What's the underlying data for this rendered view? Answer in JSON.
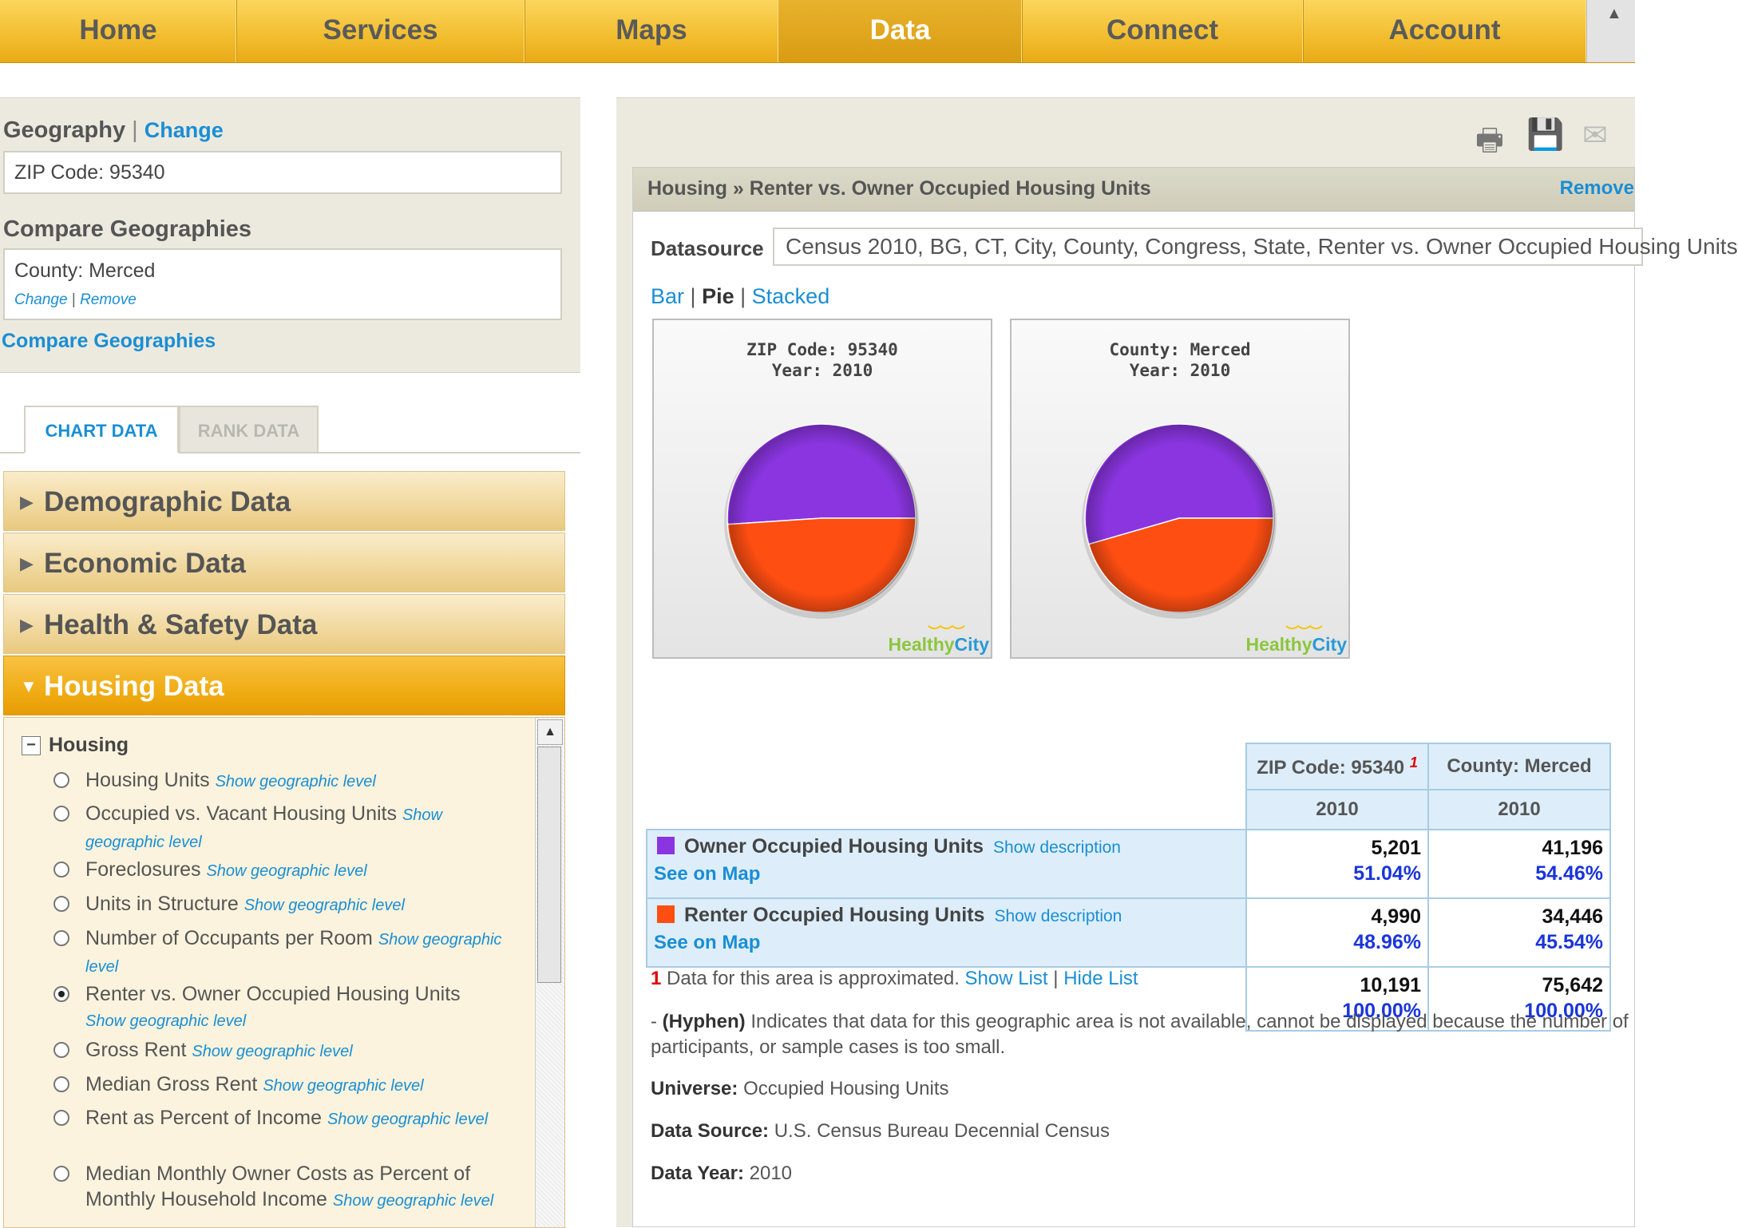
{
  "nav": {
    "items": [
      "Home",
      "Services",
      "Maps",
      "Data",
      "Connect",
      "Account"
    ],
    "active": "Data"
  },
  "geography": {
    "heading": "Geography",
    "separator": "|",
    "change_label": "Change",
    "current": "ZIP Code: 95340",
    "compare_heading": "Compare Geographies",
    "compare_value": "County: Merced",
    "compare_change": "Change",
    "compare_remove": "Remove",
    "compare_link": "Compare Geographies"
  },
  "tabs": {
    "chart": "CHART DATA",
    "rank": "RANK DATA"
  },
  "categories": {
    "demographic": "Demographic Data",
    "economic": "Economic Data",
    "health": "Health & Safety Data",
    "housing": "Housing Data"
  },
  "tree": {
    "root": "Housing",
    "options": [
      {
        "label": "Housing Units",
        "geo": "Show geographic level"
      },
      {
        "label": "Occupied vs. Vacant Housing Units",
        "geo": "Show geographic level"
      },
      {
        "label": "Foreclosures",
        "geo": "Show geographic level"
      },
      {
        "label": "Units in Structure",
        "geo": "Show geographic level"
      },
      {
        "label": "Number of Occupants per Room",
        "geo": "Show geographic level"
      },
      {
        "label": "Renter vs. Owner Occupied Housing Units",
        "geo": "Show geographic level"
      },
      {
        "label": "Gross Rent",
        "geo": "Show geographic level"
      },
      {
        "label": "Median Gross Rent",
        "geo": "Show geographic level"
      },
      {
        "label": "Rent as Percent of Income",
        "geo": "Show geographic level"
      },
      {
        "label": "Median Monthly Owner Costs as Percent of Monthly Household Income",
        "geo": "Show geographic level"
      }
    ],
    "selected_index": 5
  },
  "panel": {
    "breadcrumb": "Housing » Renter vs. Owner Occupied Housing Units",
    "remove_label": "Remove",
    "datasource_label": "Datasource",
    "datasource_value": "Census 2010, BG, CT, City, County, Congress, State, Renter vs. Owner Occupied Housing Units",
    "chart_types": {
      "bar": "Bar",
      "pie": "Pie",
      "stacked": "Stacked",
      "sep": "|"
    }
  },
  "colors": {
    "owner": "#8a35e0",
    "renter": "#ff4e12",
    "nav_gold": "#f2bd2e",
    "link_blue": "#1a8ed4"
  },
  "icons": [
    "printer-icon",
    "save-icon",
    "email-icon"
  ],
  "logo": {
    "healthy": "Healthy",
    "city": "City"
  },
  "chart_data": [
    {
      "type": "pie",
      "title": "ZIP Code: 95340",
      "subtitle": "Year: 2010",
      "categories": [
        "Owner Occupied Housing Units",
        "Renter Occupied Housing Units"
      ],
      "values": [
        51.04,
        48.96
      ]
    },
    {
      "type": "pie",
      "title": "County: Merced",
      "subtitle": "Year: 2010",
      "categories": [
        "Owner Occupied Housing Units",
        "Renter Occupied Housing Units"
      ],
      "values": [
        54.46,
        45.54
      ]
    }
  ],
  "table": {
    "col1_header": "ZIP Code: 95340",
    "col1_footnote": "1",
    "col2_header": "County: Merced",
    "year1": "2010",
    "year2": "2010",
    "show_description": "Show description",
    "see_on_map": "See on Map",
    "rows": [
      {
        "label": "Owner Occupied Housing Units",
        "zip_n": "5,201",
        "zip_p": "51.04%",
        "cty_n": "41,196",
        "cty_p": "54.46%"
      },
      {
        "label": "Renter Occupied Housing Units",
        "zip_n": "4,990",
        "zip_p": "48.96%",
        "cty_n": "34,446",
        "cty_p": "45.54%"
      }
    ],
    "total": {
      "zip_n": "10,191",
      "zip_p": "100.00%",
      "cty_n": "75,642",
      "cty_p": "100.00%"
    }
  },
  "notes": {
    "footnote_num": "1",
    "footnote_text": "Data for this area is approximated.",
    "show_list": "Show List",
    "sep": "|",
    "hide_list": "Hide List",
    "hyphen_prefix": "- ",
    "hyphen_bold": "(Hyphen)",
    "hyphen_text": "Indicates that data for this geographic area is not available, cannot be displayed because the number of participants, or sample cases is too small.",
    "universe_label": "Universe:",
    "universe_value": "Occupied Housing Units",
    "source_label": "Data Source:",
    "source_value": "U.S. Census Bureau Decennial Census",
    "year_label": "Data Year:",
    "year_value": "2010"
  }
}
